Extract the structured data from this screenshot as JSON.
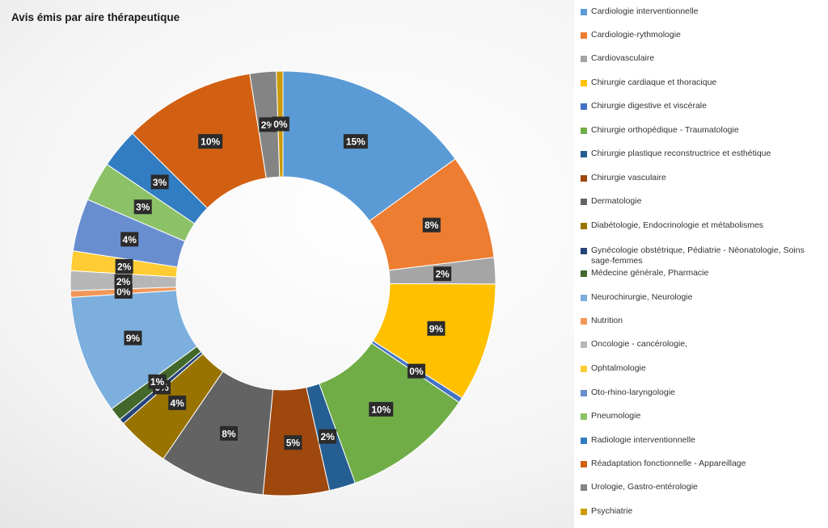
{
  "chart_data": {
    "type": "pie",
    "donut": true,
    "title": "Avis émis par aire thérapeutique",
    "legend_position": "right",
    "series": [
      {
        "name": "Cardiologie interventionnelle",
        "value": 15,
        "label": "15%",
        "color": "#5b9bd5"
      },
      {
        "name": "Cardiologie-rythmologie",
        "value": 8,
        "label": "8%",
        "color": "#ed7d31"
      },
      {
        "name": "Cardiovasculaire",
        "value": 2,
        "label": "2%",
        "color": "#a5a5a5"
      },
      {
        "name": "Chirurgie cardiaque et thoracique",
        "value": 9,
        "label": "9%",
        "color": "#ffc000"
      },
      {
        "name": "Chirurgie digestive et viscérale",
        "value": 0.4,
        "label": "0%",
        "color": "#4472c4"
      },
      {
        "name": "Chirurgie orthopédique - Traumatologie",
        "value": 10,
        "label": "10%",
        "color": "#70ad47"
      },
      {
        "name": "Chirurgie plastique reconstructrice et esthétique",
        "value": 2,
        "label": "2%",
        "color": "#255e91"
      },
      {
        "name": "Chirurgie vasculaire",
        "value": 5,
        "label": "5%",
        "color": "#9e480e"
      },
      {
        "name": "Dermatologie",
        "value": 8,
        "label": "8%",
        "color": "#636363"
      },
      {
        "name": "Diabétologie, Endocrinologie et métabolismes",
        "value": 4,
        "label": "4%",
        "color": "#997300"
      },
      {
        "name": "Gynécologie obstétrique, Pédiatrie - Néonatologie, Soins sage-femmes",
        "value": 0.4,
        "label": "0%",
        "color": "#264478"
      },
      {
        "name": "Médecine générale, Pharmacie",
        "value": 1,
        "label": "1%",
        "color": "#43682b"
      },
      {
        "name": "Neurochirurgie, Neurologie",
        "value": 9,
        "label": "9%",
        "color": "#7cafdd"
      },
      {
        "name": "Nutrition",
        "value": 0.5,
        "label": "0%",
        "color": "#f1975a"
      },
      {
        "name": "Oncologie - cancérologie,",
        "value": 1.5,
        "label": "2%",
        "color": "#b7b7b7"
      },
      {
        "name": "Ophtalmologie",
        "value": 1.5,
        "label": "2%",
        "color": "#ffcd33"
      },
      {
        "name": "Oto-rhino-laryngologie",
        "value": 4,
        "label": "4%",
        "color": "#698ed0"
      },
      {
        "name": "Pneumologie",
        "value": 3,
        "label": "3%",
        "color": "#8cc168"
      },
      {
        "name": "Radiologie interventionnelle",
        "value": 3,
        "label": "3%",
        "color": "#327dc2"
      },
      {
        "name": "Réadaptation fonctionnelle - Appareillage",
        "value": 10,
        "label": "10%",
        "color": "#d26012"
      },
      {
        "name": "Urologie, Gastro-entérologie",
        "value": 2,
        "label": "2%",
        "color": "#848484"
      },
      {
        "name": "Psychiatrie",
        "value": 0.5,
        "label": "0%",
        "color": "#cc9a06"
      }
    ]
  }
}
